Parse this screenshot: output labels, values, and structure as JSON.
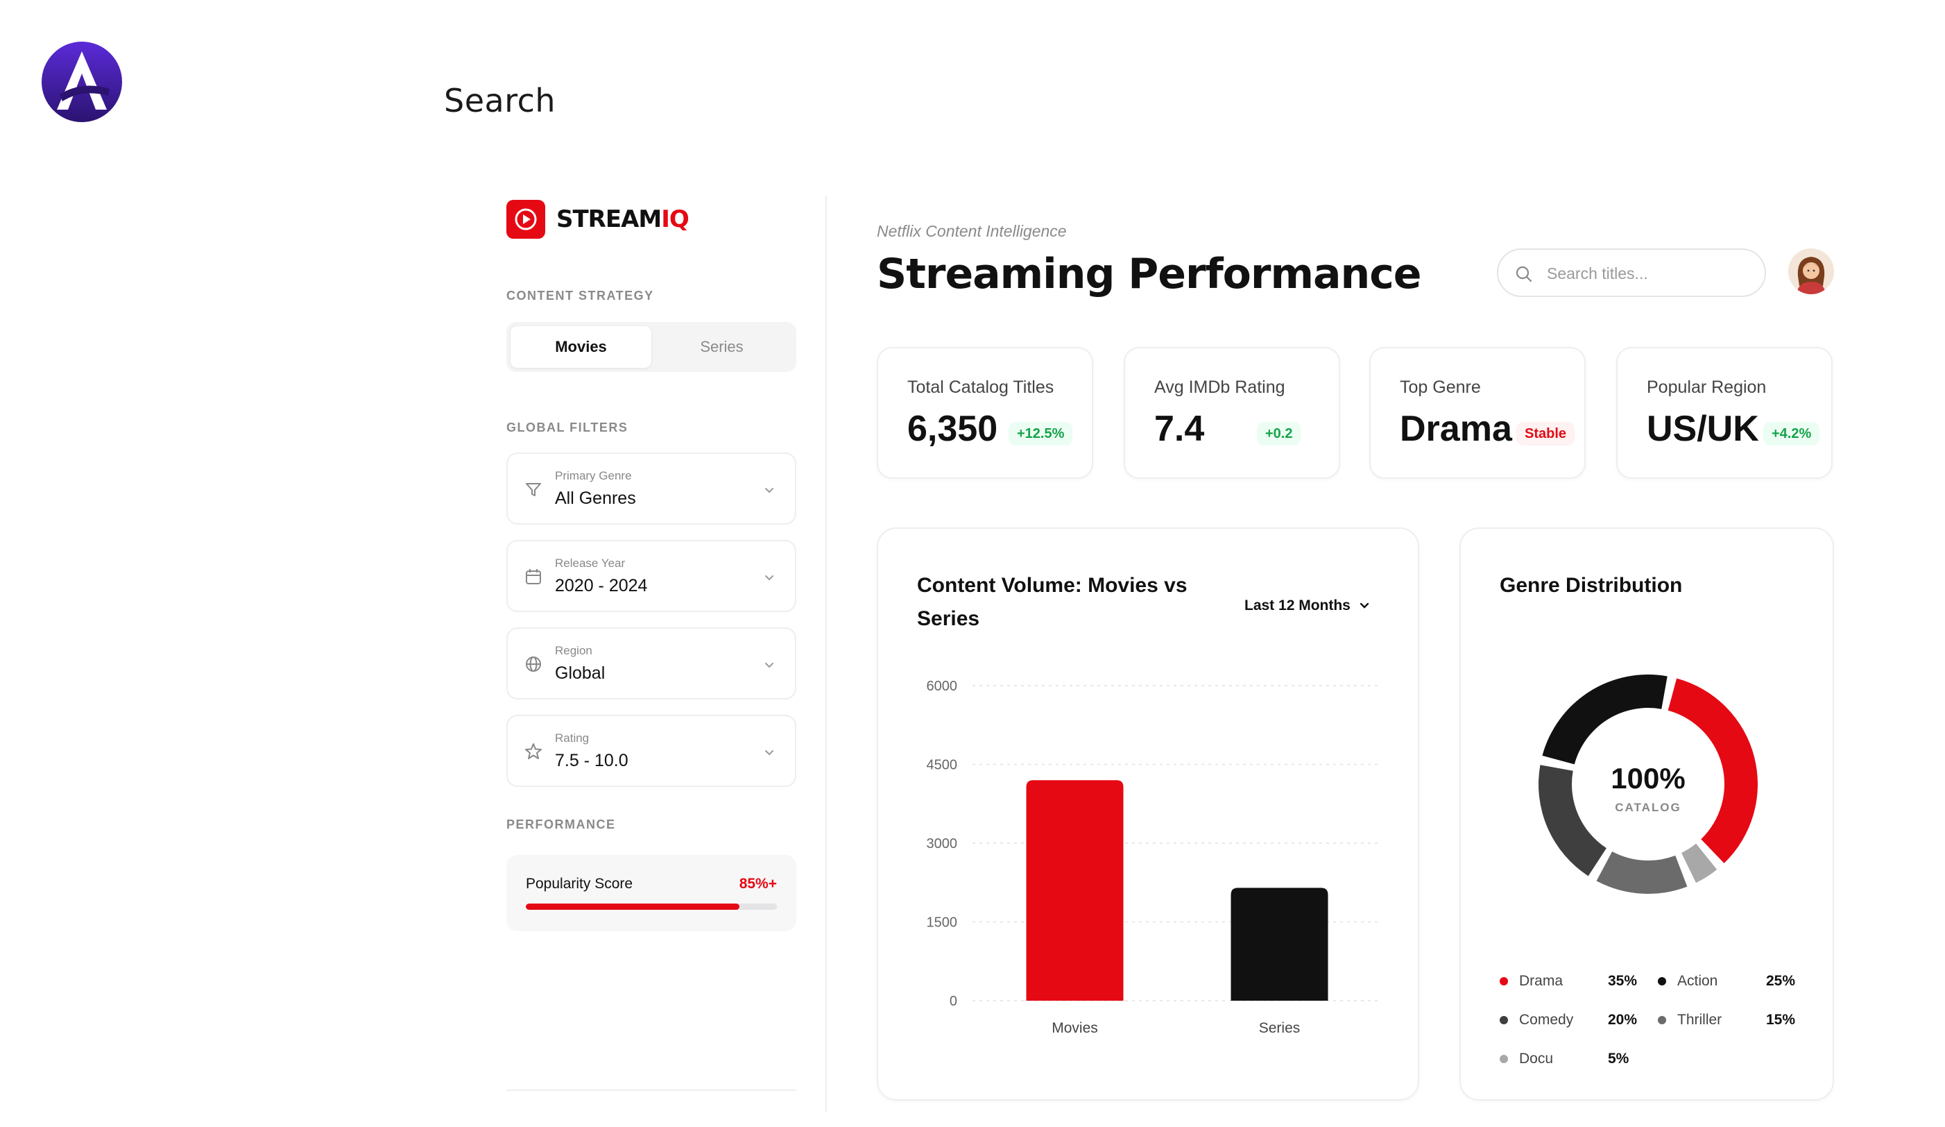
{
  "top_bar": {
    "search_label": "Search"
  },
  "sidebar": {
    "brand": {
      "name_main": "STREAM",
      "name_accent": "IQ"
    },
    "content_strategy": {
      "label": "CONTENT STRATEGY",
      "options": [
        "Movies",
        "Series"
      ],
      "selected": "Movies"
    },
    "global_filters": {
      "label": "GLOBAL FILTERS",
      "items": [
        {
          "sub": "Primary Genre",
          "value": "All Genres",
          "icon": "filter-icon"
        },
        {
          "sub": "Release Year",
          "value": "2020 - 2024",
          "icon": "calendar-icon"
        },
        {
          "sub": "Region",
          "value": "Global",
          "icon": "globe-icon"
        },
        {
          "sub": "Rating",
          "value": "7.5 - 10.0",
          "icon": "star-icon"
        }
      ]
    },
    "performance": {
      "label": "PERFORMANCE",
      "metric_label": "Popularity Score",
      "metric_value": "85%+",
      "progress_fraction": 0.85
    }
  },
  "header": {
    "subtitle": "Netflix Content Intelligence",
    "title": "Streaming Performance",
    "search_placeholder": "Search titles..."
  },
  "kpis": [
    {
      "label": "Total Catalog Titles",
      "value": "6,350",
      "badge": "+12.5%",
      "badge_tone": "green"
    },
    {
      "label": "Avg IMDb Rating",
      "value": "7.4",
      "badge": "+0.2",
      "badge_tone": "green"
    },
    {
      "label": "Top Genre",
      "value": "Drama",
      "badge": "Stable",
      "badge_tone": "red"
    },
    {
      "label": "Popular Region",
      "value": "US/UK",
      "badge": "+4.2%",
      "badge_tone": "green"
    }
  ],
  "bar_chart": {
    "title_line1": "Content Volume: Movies vs",
    "title_line2": "Series",
    "period": "Last 12 Months"
  },
  "donut": {
    "title": "Genre Distribution",
    "center_value": "100%",
    "center_label": "CATALOG"
  },
  "colors": {
    "accent": "#e50914",
    "dark": "#111111",
    "comedy": "#3f3f3f",
    "thriller": "#6b6b6b",
    "docu": "#a8a8a8"
  },
  "chart_data": [
    {
      "type": "bar",
      "categories": [
        "Movies",
        "Series"
      ],
      "values": [
        4200,
        2150
      ],
      "colors": [
        "#e50914",
        "#111111"
      ],
      "ylim": [
        0,
        6000
      ],
      "yticks": [
        0,
        1500,
        3000,
        4500,
        6000
      ],
      "grid": true
    },
    {
      "type": "pie",
      "labels": [
        "Drama",
        "Action",
        "Comedy",
        "Thriller",
        "Docu"
      ],
      "values": [
        35,
        25,
        20,
        15,
        5
      ],
      "display": [
        "35%",
        "25%",
        "20%",
        "15%",
        "5%"
      ],
      "colors": [
        "#e50914",
        "#111111",
        "#3f3f3f",
        "#6b6b6b",
        "#a8a8a8"
      ],
      "legend_position": "bottom"
    }
  ]
}
